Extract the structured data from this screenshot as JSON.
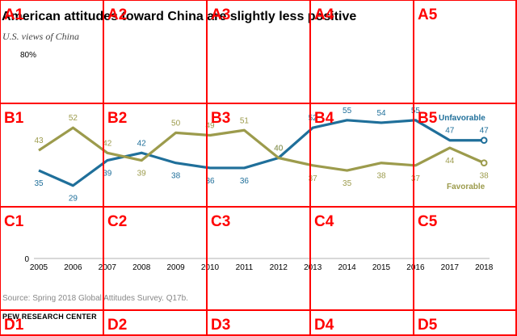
{
  "title": "American attitudes toward China",
  "title_tail": "are slightly less positive",
  "subtitle": "U.S. views of China",
  "ytick_top": "80%",
  "ytick_zero": "0",
  "source": "Source: Spring 2018 Global Attitudes Survey. Q17b.",
  "brand": "PEW RESEARCH CENTER",
  "grid_labels": [
    "A1",
    "A2",
    "A3",
    "A4",
    "A5",
    "B1",
    "B2",
    "B3",
    "B4",
    "B5",
    "C1",
    "C2",
    "C3",
    "C4",
    "C5",
    "D1",
    "D2",
    "D3",
    "D4",
    "D5"
  ],
  "colors": {
    "unfavorable": "#1f6f9a",
    "favorable": "#9c9b4c",
    "grid": "#ff0000"
  },
  "chart_data": {
    "type": "line",
    "title": "American attitudes toward China are slightly less positive",
    "subtitle": "U.S. views of China",
    "ylim": [
      0,
      80
    ],
    "x": [
      "2005",
      "2006",
      "2007",
      "2008",
      "2009",
      "2010",
      "2011",
      "2012",
      "2013",
      "2014",
      "2015",
      "2016",
      "2017",
      "2018"
    ],
    "series": [
      {
        "name": "Unfavorable",
        "values": [
          35,
          29,
          39,
          42,
          38,
          36,
          36,
          40,
          52,
          55,
          54,
          55,
          47,
          47
        ],
        "labels": [
          "35",
          "29",
          "39",
          "42",
          "38",
          "36",
          "36",
          "40",
          "52",
          "55",
          "54",
          "55",
          "47",
          "47"
        ]
      },
      {
        "name": "Favorable",
        "values": [
          43,
          52,
          42,
          39,
          50,
          49,
          51,
          40,
          37,
          35,
          38,
          37,
          44,
          38
        ],
        "labels": [
          "43",
          "52",
          "42",
          "39",
          "50",
          "49",
          "51",
          "40",
          "37",
          "35",
          "38",
          "37",
          "44",
          "38"
        ]
      }
    ]
  }
}
